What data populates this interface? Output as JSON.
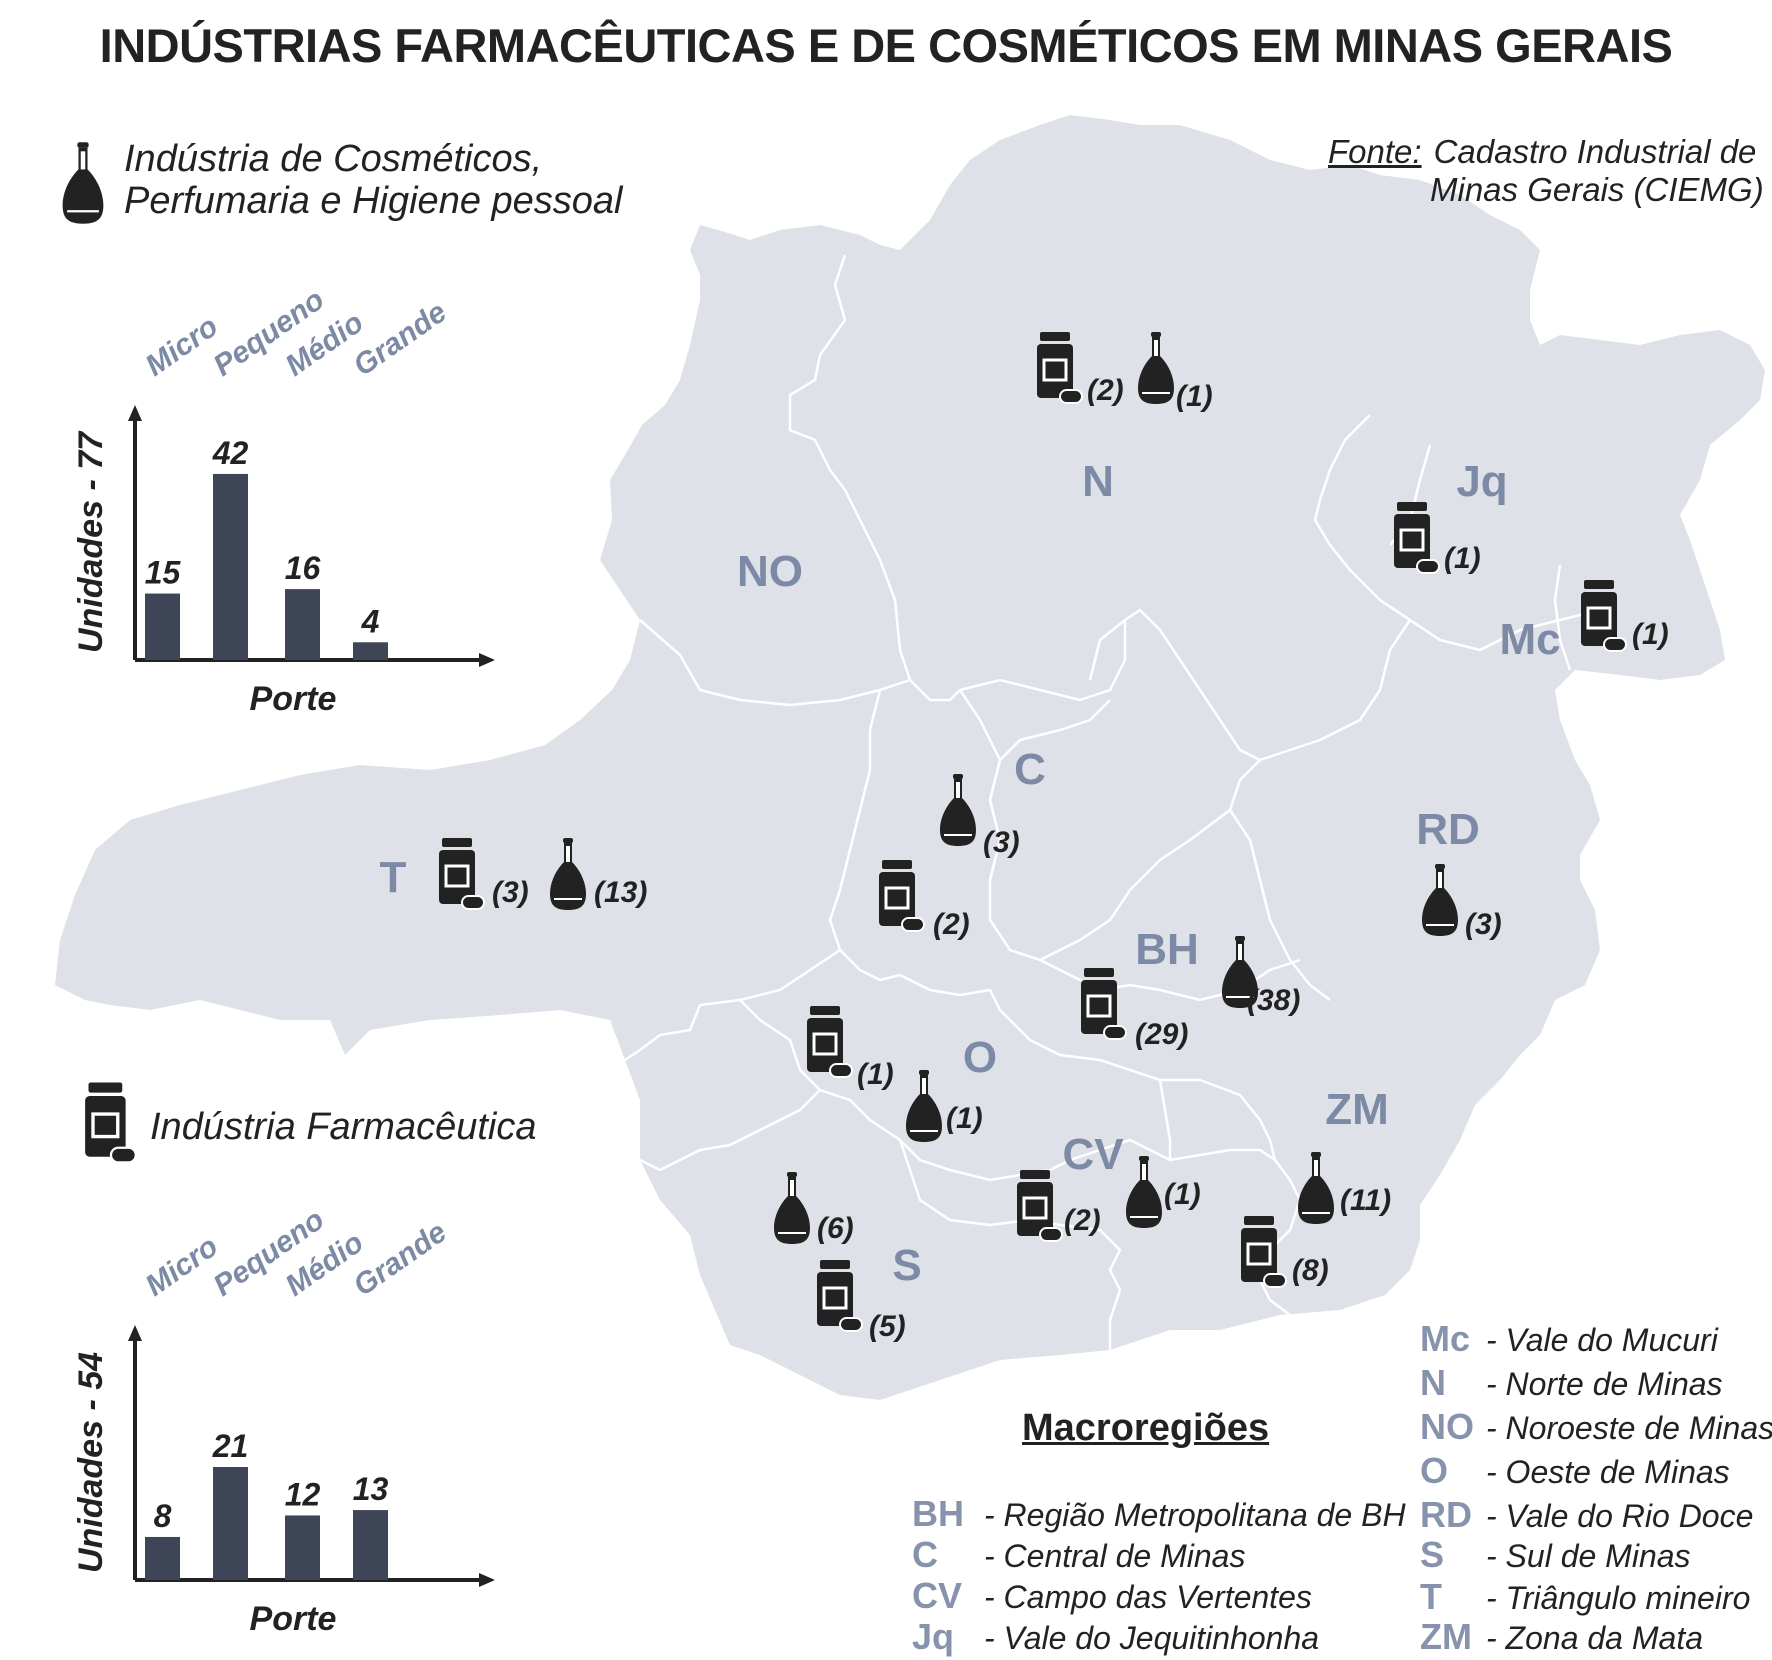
{
  "title": "INDÚSTRIAS FARMACÊUTICAS E DE COSMÉTICOS EM MINAS GERAIS",
  "source": {
    "label": "Fonte:",
    "line1": "Cadastro Industrial de",
    "line2": "Minas Gerais (CIEMG)"
  },
  "legend": {
    "cosmetics": {
      "line1": "Indústria de Cosméticos,",
      "line2": "Perfumaria e Higiene pessoal",
      "icon": "cosmetic-bottle-icon"
    },
    "pharma": {
      "label": "Indústria Farmacêutica",
      "icon": "pill-bottle-icon"
    }
  },
  "colors": {
    "map_fill": "#dfe1e8",
    "bar": "#3d4556",
    "region_label": "#7d8aa5"
  },
  "regions": [
    {
      "code": "NO",
      "cosmetics": null,
      "pharma": null
    },
    {
      "code": "N",
      "cosmetics": "(1)",
      "pharma": "(2)"
    },
    {
      "code": "Jq",
      "cosmetics": null,
      "pharma": "(1)"
    },
    {
      "code": "Mc",
      "cosmetics": null,
      "pharma": "(1)"
    },
    {
      "code": "C",
      "cosmetics": "(3)",
      "pharma": "(2)"
    },
    {
      "code": "T",
      "cosmetics": "(13)",
      "pharma": "(3)"
    },
    {
      "code": "RD",
      "cosmetics": "(3)",
      "pharma": null
    },
    {
      "code": "BH",
      "cosmetics": "(38)",
      "pharma": "(29)"
    },
    {
      "code": "O",
      "cosmetics": "(1)",
      "pharma": "(1)"
    },
    {
      "code": "CV",
      "cosmetics": "(1)",
      "pharma": "(2)"
    },
    {
      "code": "ZM",
      "cosmetics": "(11)",
      "pharma": "(8)"
    },
    {
      "code": "S",
      "cosmetics": "(6)",
      "pharma": "(5)"
    }
  ],
  "macro": {
    "title": "Macroregiões",
    "left": [
      {
        "abbr": "BH",
        "name": "- Região Metropolitana de BH"
      },
      {
        "abbr": "C",
        "name": "- Central de Minas"
      },
      {
        "abbr": "CV",
        "name": "- Campo das Vertentes"
      },
      {
        "abbr": "Jq",
        "name": "- Vale do Jequitinhonha"
      }
    ],
    "right": [
      {
        "abbr": "Mc",
        "name": "- Vale do Mucuri"
      },
      {
        "abbr": "N",
        "name": "- Norte de Minas"
      },
      {
        "abbr": "NO",
        "name": "- Noroeste de Minas"
      },
      {
        "abbr": "O",
        "name": "- Oeste de Minas"
      },
      {
        "abbr": "RD",
        "name": "- Vale do Rio Doce"
      },
      {
        "abbr": "S",
        "name": "- Sul de Minas"
      },
      {
        "abbr": "T",
        "name": "- Triângulo mineiro"
      },
      {
        "abbr": "ZM",
        "name": "- Zona da Mata"
      }
    ]
  },
  "chart_data": [
    {
      "type": "bar",
      "title": "",
      "categories": [
        "Micro",
        "Pequeno",
        "Médio",
        "Grande"
      ],
      "values": [
        15,
        42,
        16,
        4
      ],
      "ylabel": "Unidades - 77",
      "xlabel": "Porte",
      "ylim": [
        0,
        100
      ]
    },
    {
      "type": "bar",
      "title": "",
      "categories": [
        "Micro",
        "Pequeno",
        "Médio",
        "Grande"
      ],
      "values": [
        8,
        21,
        12,
        13
      ],
      "ylabel": "Unidades - 54",
      "xlabel": "Porte",
      "ylim": [
        0,
        50
      ]
    }
  ]
}
